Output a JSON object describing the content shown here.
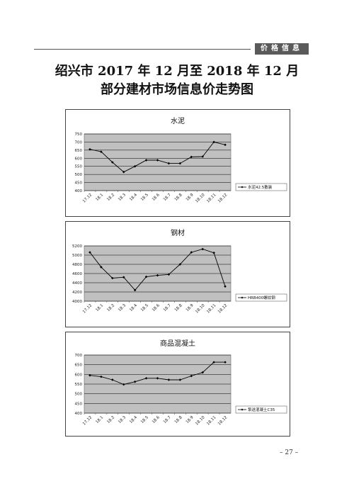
{
  "header": {
    "section_label": "价格信息",
    "page_number": "– 27 –"
  },
  "title": {
    "line1": "绍兴市 2017 年 12 月至 2018 年 12 月",
    "line2": "部分建材市场信息价走势图"
  },
  "categories": [
    "17.12",
    "18.1",
    "18.2",
    "18.3",
    "18.4",
    "18.5",
    "18.6",
    "18.7",
    "18.8",
    "18.9",
    "18.10",
    "18.11",
    "18.12"
  ],
  "chart_data": [
    {
      "type": "line",
      "title": "水泥",
      "ylim": [
        400,
        750
      ],
      "yticks": [
        400,
        450,
        500,
        550,
        600,
        650,
        700,
        750
      ],
      "series": [
        {
          "name": "水泥42.5散装",
          "values": [
            655,
            640,
            575,
            515,
            550,
            588,
            588,
            568,
            568,
            608,
            610,
            700,
            683
          ]
        }
      ],
      "legend": "right",
      "grid": true,
      "colors": {
        "plot_bg": "#c0c0c0",
        "line": "#000000"
      }
    },
    {
      "type": "line",
      "title": "钢材",
      "ylim": [
        4000,
        5200
      ],
      "yticks": [
        4000,
        4200,
        4400,
        4600,
        4800,
        5000,
        5200
      ],
      "series": [
        {
          "name": "HRB400螺纹钢",
          "values": [
            5060,
            4740,
            4500,
            4520,
            4240,
            4530,
            4560,
            4580,
            4800,
            5060,
            5130,
            5050,
            4320
          ]
        }
      ],
      "legend": "right",
      "grid": true,
      "colors": {
        "plot_bg": "#c0c0c0",
        "line": "#000000"
      }
    },
    {
      "type": "line",
      "title": "商品混凝土",
      "ylim": [
        400,
        700
      ],
      "yticks": [
        400,
        450,
        500,
        550,
        600,
        650,
        700
      ],
      "series": [
        {
          "name": "泵送混凝土C35",
          "values": [
            595,
            588,
            572,
            548,
            562,
            580,
            580,
            572,
            572,
            592,
            610,
            663,
            663
          ]
        }
      ],
      "legend": "right",
      "grid": true,
      "colors": {
        "plot_bg": "#c0c0c0",
        "line": "#000000"
      }
    }
  ]
}
